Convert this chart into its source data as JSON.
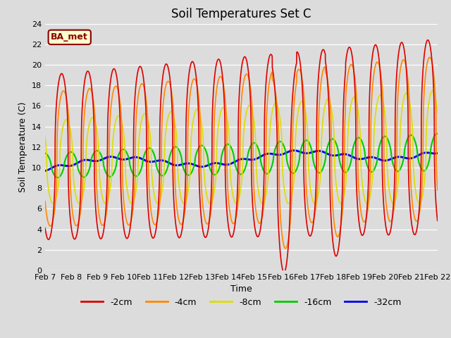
{
  "title": "Soil Temperatures Set C",
  "xlabel": "Time",
  "ylabel": "Soil Temperature (C)",
  "ylim": [
    0,
    24
  ],
  "yticks": [
    0,
    2,
    4,
    6,
    8,
    10,
    12,
    14,
    16,
    18,
    20,
    22,
    24
  ],
  "xtick_labels": [
    "Feb 7",
    "Feb 8",
    "Feb 9",
    "Feb 10",
    "Feb 11",
    "Feb 12",
    "Feb 13",
    "Feb 14",
    "Feb 15",
    "Feb 16",
    "Feb 17",
    "Feb 18",
    "Feb 19",
    "Feb 20",
    "Feb 21",
    "Feb 22"
  ],
  "series": {
    "-2cm": {
      "color": "#dd0000",
      "linewidth": 1.2
    },
    "-4cm": {
      "color": "#ff8800",
      "linewidth": 1.2
    },
    "-8cm": {
      "color": "#dddd00",
      "linewidth": 1.2
    },
    "-16cm": {
      "color": "#00cc00",
      "linewidth": 1.5
    },
    "-32cm": {
      "color": "#0000ee",
      "linewidth": 2.0
    }
  },
  "legend_labels": [
    "-2cm",
    "-4cm",
    "-8cm",
    "-16cm",
    "-32cm"
  ],
  "legend_colors": [
    "#dd0000",
    "#ff8800",
    "#dddd00",
    "#00cc00",
    "#0000ee"
  ],
  "watermark_text": "BA_met",
  "watermark_color": "#880000",
  "watermark_bg": "#ffffcc",
  "background_color": "#dcdcdc",
  "plot_bg_color": "#dcdcdc",
  "title_fontsize": 12,
  "axis_label_fontsize": 9,
  "tick_fontsize": 8
}
